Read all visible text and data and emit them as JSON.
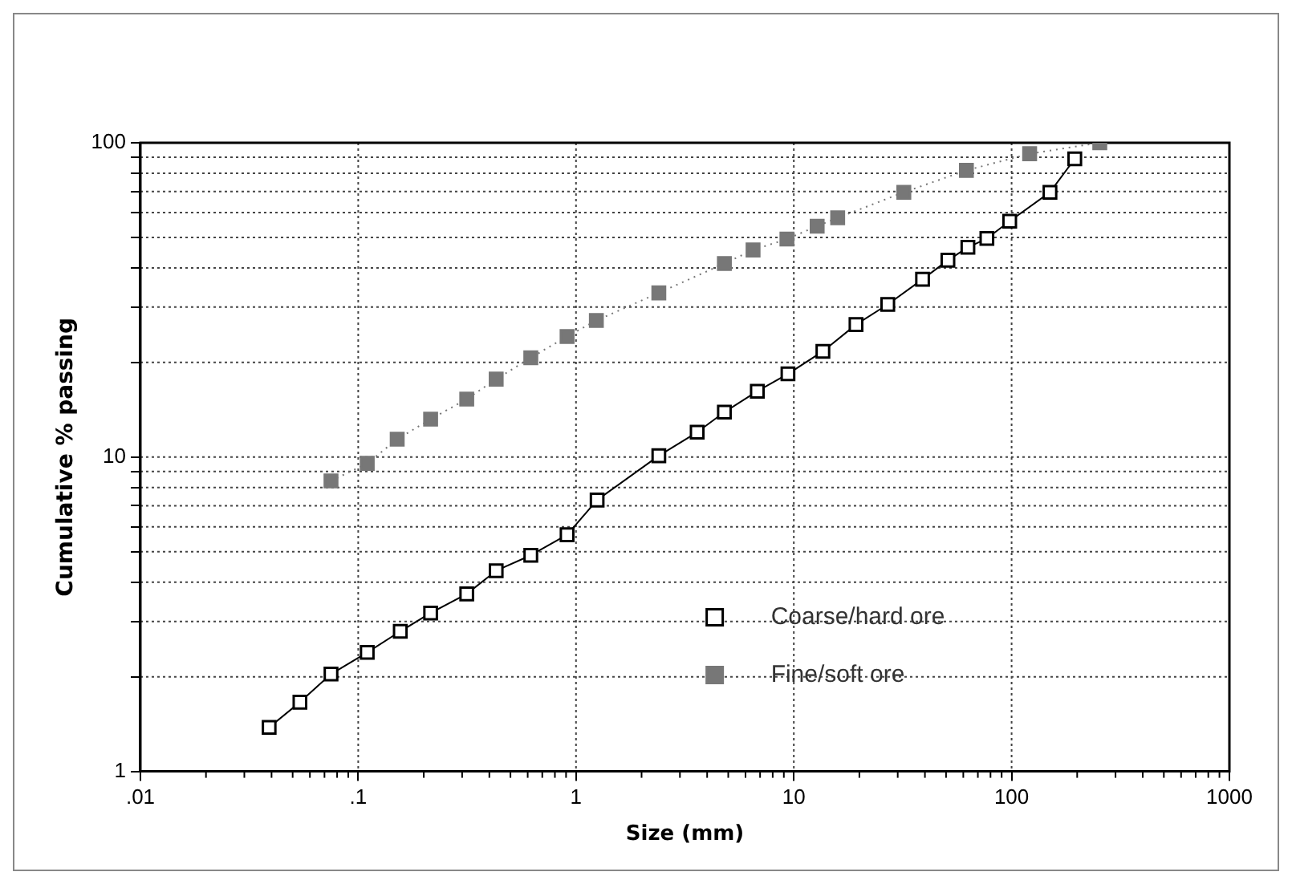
{
  "chart_data": {
    "type": "line",
    "xlabel": "Size (mm)",
    "ylabel": "Cumulative % passing",
    "log": "xy",
    "grid": true,
    "legend": "bottom right",
    "marker": "square",
    "xlim": [
      0.01,
      1000
    ],
    "ylim": [
      1,
      100
    ],
    "xticks": [
      {
        "value": 0.01,
        "label": ".01"
      },
      {
        "value": 0.1,
        "label": ".1"
      },
      1,
      10,
      100,
      1000
    ],
    "yticks": [
      1,
      {
        "value": 2,
        "label": null
      },
      {
        "value": 3,
        "label": null
      },
      {
        "value": 4,
        "label": null
      },
      {
        "value": 5,
        "label": null
      },
      {
        "value": 6,
        "label": null
      },
      {
        "value": 7,
        "label": null
      },
      {
        "value": 8,
        "label": null
      },
      {
        "value": 9,
        "label": null
      },
      10,
      {
        "value": 20,
        "label": null
      },
      {
        "value": 30,
        "label": null
      },
      {
        "value": 40,
        "label": null
      },
      {
        "value": 50,
        "label": null
      },
      {
        "value": 60,
        "label": null
      },
      {
        "value": 70,
        "label": null
      },
      {
        "value": 80,
        "label": null
      },
      {
        "value": 90,
        "label": null
      },
      100
    ],
    "series": [
      {
        "name": "Coarse/hard ore",
        "color": "#000000",
        "line_style": "solid",
        "x": [
          0.039,
          0.054,
          0.075,
          0.11,
          0.156,
          0.215,
          0.315,
          0.43,
          0.62,
          0.91,
          1.25,
          2.4,
          3.6,
          4.8,
          6.8,
          9.4,
          13.6,
          19.3,
          27,
          39,
          51,
          63,
          77,
          98,
          150,
          195
        ],
        "values": [
          1.38,
          1.66,
          2.04,
          2.39,
          2.79,
          3.19,
          3.67,
          4.35,
          4.87,
          5.66,
          7.3,
          10.1,
          12,
          13.9,
          16.2,
          18.4,
          21.7,
          26.4,
          30.6,
          36.8,
          42.3,
          46.5,
          49.6,
          56.3,
          69.6,
          88.9
        ]
      },
      {
        "name": "Fine/soft ore",
        "color": "#777777",
        "line_style": "dotted",
        "x": [
          0.075,
          0.11,
          0.151,
          0.215,
          0.315,
          0.43,
          0.62,
          0.91,
          1.24,
          2.4,
          4.8,
          6.5,
          9.3,
          12.8,
          15.9,
          32,
          62,
          121,
          254
        ],
        "values": [
          8.4,
          9.55,
          11.4,
          13.2,
          15.3,
          17.7,
          20.7,
          24.2,
          27.2,
          33.3,
          41.3,
          45.6,
          49.4,
          54.3,
          57.7,
          69.6,
          81.7,
          92.3,
          100
        ]
      }
    ]
  }
}
